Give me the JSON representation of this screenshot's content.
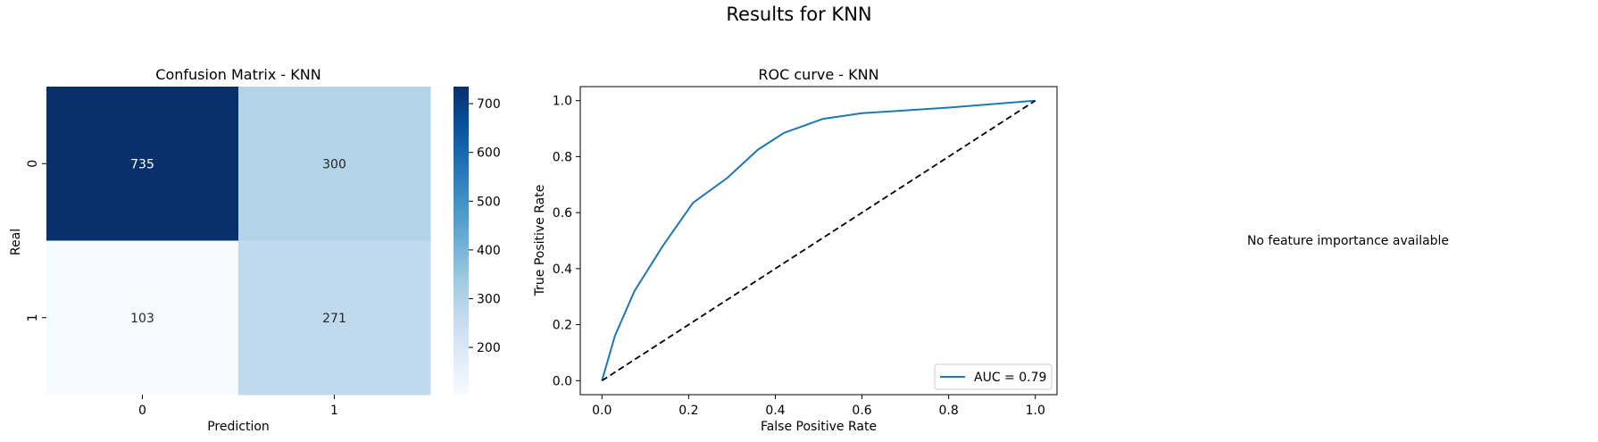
{
  "figure": {
    "title": "Results for KNN",
    "feature_importance_message": "No feature importance available"
  },
  "chart_data": [
    {
      "type": "heatmap",
      "title": "Confusion Matrix - KNN",
      "xlabel": "Prediction",
      "ylabel": "Real",
      "x_categories": [
        "0",
        "1"
      ],
      "y_categories": [
        "0",
        "1"
      ],
      "values": [
        [
          735,
          300
        ],
        [
          103,
          271
        ]
      ],
      "colormap": "Blues",
      "colorbar": {
        "ticks": [
          200,
          300,
          400,
          500,
          600,
          700
        ],
        "tick_labels": [
          "200",
          "300",
          "400",
          "500",
          "600",
          "700"
        ],
        "range": [
          103,
          735
        ]
      }
    },
    {
      "type": "line",
      "title": "ROC curve - KNN",
      "xlabel": "False Positive Rate",
      "ylabel": "True Positive Rate",
      "xlim": [
        -0.05,
        1.05
      ],
      "ylim": [
        -0.05,
        1.05
      ],
      "xticks": [
        "0.0",
        "0.2",
        "0.4",
        "0.6",
        "0.8",
        "1.0"
      ],
      "yticks": [
        "0.0",
        "0.2",
        "0.4",
        "0.6",
        "0.8",
        "1.0"
      ],
      "series": [
        {
          "name": "AUC = 0.79",
          "color": "#1f77b4",
          "style": "solid",
          "x": [
            0.0,
            0.03,
            0.075,
            0.14,
            0.21,
            0.29,
            0.36,
            0.42,
            0.51,
            0.6,
            0.8,
            1.0
          ],
          "y": [
            0.0,
            0.16,
            0.32,
            0.48,
            0.635,
            0.725,
            0.825,
            0.885,
            0.935,
            0.955,
            0.975,
            1.0
          ]
        },
        {
          "color": "#000000",
          "style": "dashed",
          "x": [
            0.0,
            1.0
          ],
          "y": [
            0.0,
            1.0
          ]
        }
      ],
      "legend": "lower right",
      "grid": false
    }
  ]
}
